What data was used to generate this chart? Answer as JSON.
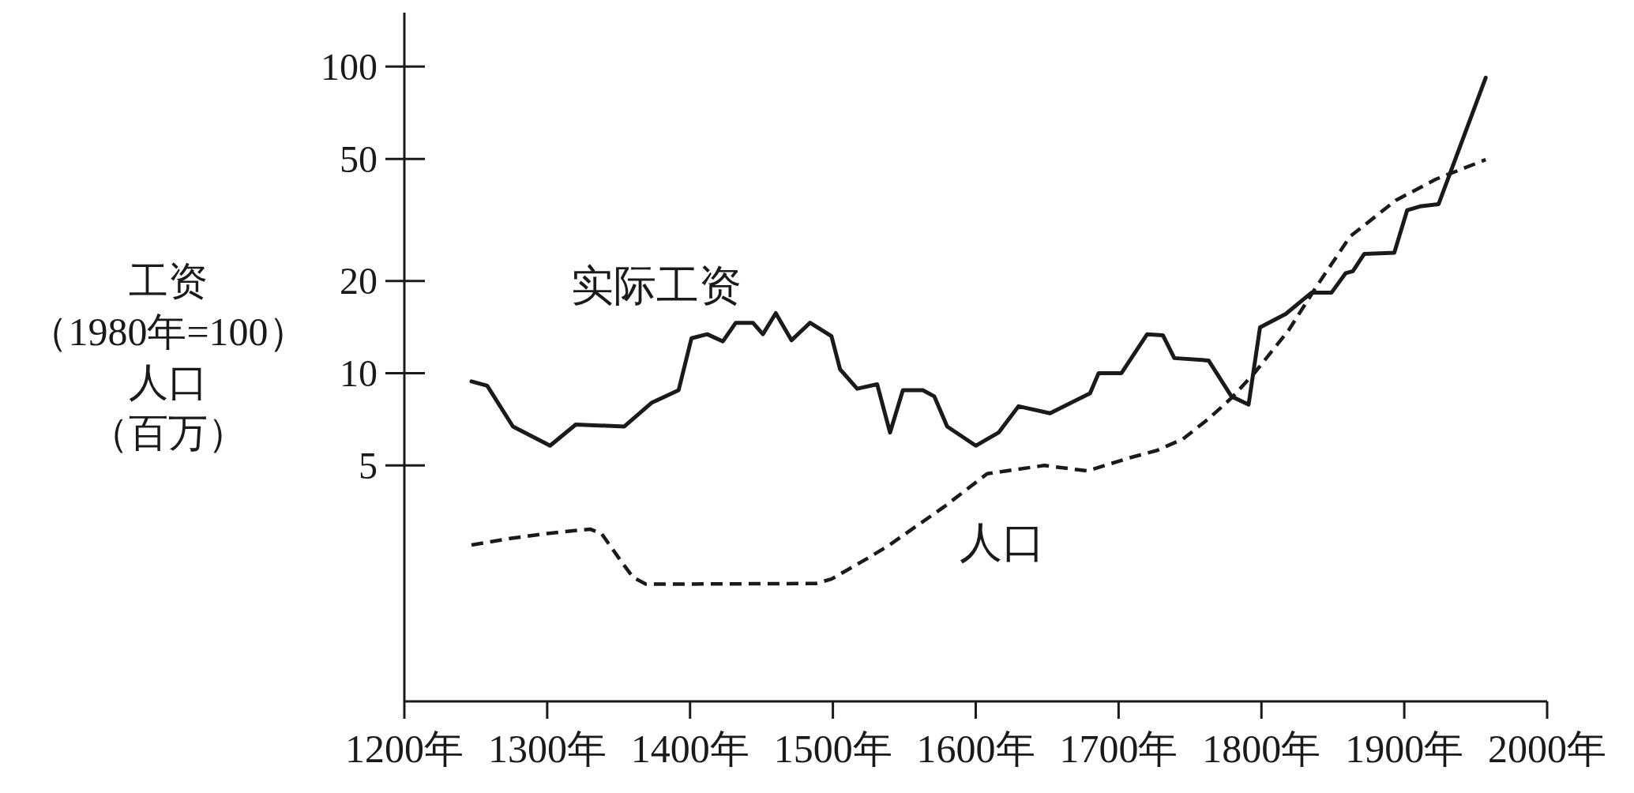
{
  "chart_data": {
    "type": "line",
    "ylabel": "工资（1980年=100）人口（百万）",
    "log": "y",
    "xlim": [
      1200,
      2000
    ],
    "xticks": [
      {
        "value": 1200,
        "label": "1200年"
      },
      {
        "value": 1300,
        "label": "1300年"
      },
      {
        "value": 1400,
        "label": "1400年"
      },
      {
        "value": 1500,
        "label": "1500年"
      },
      {
        "value": 1600,
        "label": "1600年"
      },
      {
        "value": 1700,
        "label": "1700年"
      },
      {
        "value": 1800,
        "label": "1800年"
      },
      {
        "value": 1900,
        "label": "1900年"
      },
      {
        "value": 2000,
        "label": "2000年"
      }
    ],
    "ylim": [
      0.85,
      150
    ],
    "yticks": [
      5,
      10,
      20,
      50,
      100
    ],
    "series": [
      {
        "name": "实际工资",
        "color": "#1a1a1a",
        "line_style": "solid",
        "x": [
          1247,
          1258,
          1276,
          1302,
          1320,
          1354,
          1373,
          1392,
          1401,
          1412,
          1423,
          1432,
          1444,
          1451,
          1460,
          1471,
          1484,
          1499,
          1505,
          1517,
          1531,
          1540,
          1549,
          1563,
          1571,
          1580,
          1600,
          1616,
          1630,
          1652,
          1680,
          1686,
          1702,
          1720,
          1731,
          1739,
          1763,
          1779,
          1791,
          1799,
          1817,
          1835,
          1849,
          1859,
          1864,
          1872,
          1893,
          1902,
          1911,
          1924,
          1957
        ],
        "values": [
          9.4,
          9.1,
          6.7,
          5.8,
          6.8,
          6.7,
          8.0,
          8.8,
          13.0,
          13.4,
          12.7,
          14.6,
          14.6,
          13.4,
          15.7,
          12.8,
          14.6,
          13.2,
          10.3,
          8.9,
          9.2,
          6.4,
          8.8,
          8.8,
          8.4,
          6.7,
          5.8,
          6.4,
          7.8,
          7.4,
          8.6,
          10.0,
          10.0,
          13.4,
          13.3,
          11.2,
          11.0,
          8.4,
          7.9,
          14.1,
          15.6,
          18.3,
          18.3,
          21.2,
          21.5,
          24.5,
          24.7,
          34.0,
          35.0,
          35.6,
          92
        ]
      },
      {
        "name": "人口",
        "color": "#1a1a1a",
        "line_style": "dashed",
        "x": [
          1247,
          1274,
          1300,
          1330,
          1338,
          1350,
          1360,
          1369,
          1488,
          1499,
          1525,
          1539,
          1578,
          1608,
          1648,
          1678,
          1708,
          1727,
          1745,
          1763,
          1779,
          1795,
          1819,
          1838,
          1862,
          1894,
          1922,
          1957
        ],
        "values": [
          2.75,
          2.89,
          3.0,
          3.1,
          3.0,
          2.5,
          2.16,
          2.05,
          2.06,
          2.13,
          2.5,
          2.74,
          3.67,
          4.7,
          5.0,
          4.8,
          5.3,
          5.6,
          6.1,
          7.1,
          8.3,
          10.0,
          13.8,
          19.0,
          27.9,
          36.6,
          42.9,
          49.7
        ]
      }
    ]
  }
}
